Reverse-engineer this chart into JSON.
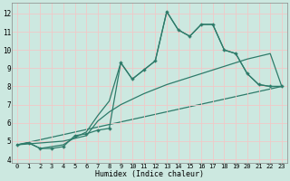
{
  "xlabel": "Humidex (Indice chaleur)",
  "background_color": "#cce8e0",
  "grid_color": "#f0c8c8",
  "line_color": "#2e7b6a",
  "xlim": [
    -0.5,
    23.5
  ],
  "ylim": [
    3.8,
    12.6
  ],
  "xticks": [
    0,
    1,
    2,
    3,
    4,
    5,
    6,
    7,
    8,
    9,
    10,
    11,
    12,
    13,
    14,
    15,
    16,
    17,
    18,
    19,
    20,
    21,
    22,
    23
  ],
  "yticks": [
    4,
    5,
    6,
    7,
    8,
    9,
    10,
    11,
    12
  ],
  "series": [
    {
      "x": [
        0,
        1,
        2,
        3,
        4,
        5,
        6,
        7,
        8,
        9,
        10,
        11,
        12,
        13,
        14,
        15,
        16,
        17,
        18,
        19,
        20,
        21,
        22,
        23
      ],
      "y": [
        4.8,
        4.9,
        4.6,
        4.6,
        4.7,
        5.3,
        5.4,
        5.6,
        5.7,
        9.3,
        8.4,
        8.9,
        9.4,
        12.1,
        11.1,
        10.75,
        11.4,
        11.4,
        10.0,
        9.8,
        8.7,
        8.1,
        8.0,
        8.0
      ],
      "marker": "P",
      "markersize": 2.2,
      "linewidth": 0.9,
      "zorder": 4
    },
    {
      "x": [
        0,
        1,
        2,
        3,
        4,
        5,
        6,
        7,
        8,
        9,
        10,
        11,
        12,
        13,
        14,
        15,
        16,
        17,
        18,
        19,
        20,
        21,
        22,
        23
      ],
      "y": [
        4.8,
        4.9,
        4.6,
        4.7,
        4.8,
        5.2,
        5.5,
        6.4,
        7.2,
        9.3,
        8.4,
        8.9,
        9.4,
        12.1,
        11.1,
        10.75,
        11.4,
        11.4,
        10.0,
        9.8,
        8.7,
        8.1,
        8.0,
        8.0
      ],
      "marker": "None",
      "markersize": 0,
      "linewidth": 0.9,
      "zorder": 3
    },
    {
      "x": [
        0,
        1,
        2,
        3,
        4,
        5,
        6,
        7,
        8,
        9,
        10,
        11,
        12,
        13,
        14,
        15,
        16,
        17,
        18,
        19,
        20,
        21,
        22,
        23
      ],
      "y": [
        4.8,
        4.85,
        4.9,
        4.95,
        5.0,
        5.15,
        5.3,
        6.1,
        6.6,
        7.0,
        7.3,
        7.6,
        7.85,
        8.1,
        8.3,
        8.5,
        8.7,
        8.9,
        9.1,
        9.3,
        9.5,
        9.65,
        9.8,
        8.0
      ],
      "marker": "None",
      "markersize": 0,
      "linewidth": 0.9,
      "zorder": 2
    },
    {
      "x": [
        0,
        23
      ],
      "y": [
        4.8,
        8.0
      ],
      "marker": "None",
      "markersize": 0,
      "linewidth": 0.9,
      "zorder": 1
    }
  ]
}
